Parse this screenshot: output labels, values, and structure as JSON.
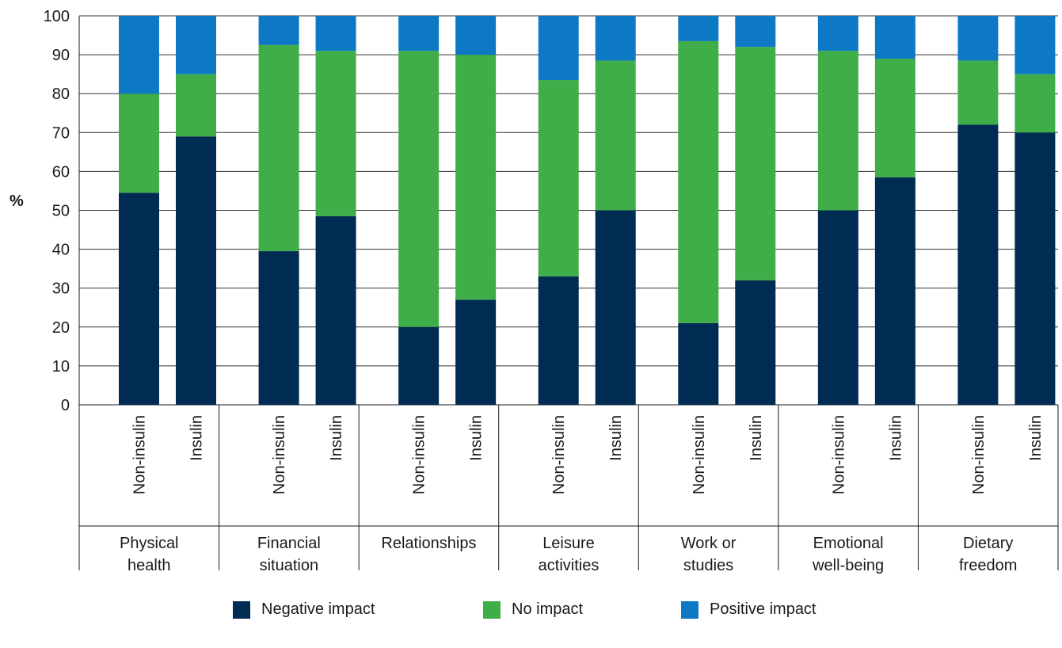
{
  "chart_data": {
    "type": "bar",
    "stacked": true,
    "ylabel": "%",
    "ylim": [
      0,
      100
    ],
    "yticks": [
      0,
      10,
      20,
      30,
      40,
      50,
      60,
      70,
      80,
      90,
      100
    ],
    "grid": true,
    "legend_position": "bottom",
    "groups": [
      {
        "label": "Physical health",
        "lines": [
          "Physical",
          "health"
        ],
        "bars": [
          {
            "label": "Non-insulin",
            "values": [
              54.5,
              25.5,
              20
            ]
          },
          {
            "label": "Insulin",
            "values": [
              69,
              16,
              15
            ]
          }
        ]
      },
      {
        "label": "Financial situation",
        "lines": [
          "Financial",
          "situation"
        ],
        "bars": [
          {
            "label": "Non-insulin",
            "values": [
              39.5,
              53,
              7.5
            ]
          },
          {
            "label": "Insulin",
            "values": [
              48.5,
              42.5,
              9
            ]
          }
        ]
      },
      {
        "label": "Relationships",
        "lines": [
          "Relationships"
        ],
        "bars": [
          {
            "label": "Non-insulin",
            "values": [
              20,
              71,
              9
            ]
          },
          {
            "label": "Insulin",
            "values": [
              27,
              63,
              10
            ]
          }
        ]
      },
      {
        "label": "Leisure activities",
        "lines": [
          "Leisure",
          "activities"
        ],
        "bars": [
          {
            "label": "Non-insulin",
            "values": [
              33,
              50.5,
              16.5
            ]
          },
          {
            "label": "Insulin",
            "values": [
              50,
              38.5,
              11.5
            ]
          }
        ]
      },
      {
        "label": "Work or studies",
        "lines": [
          "Work or",
          "studies"
        ],
        "bars": [
          {
            "label": "Non-insulin",
            "values": [
              21,
              72.5,
              6.5
            ]
          },
          {
            "label": "Insulin",
            "values": [
              32,
              60,
              8
            ]
          }
        ]
      },
      {
        "label": "Emotional well-being",
        "lines": [
          "Emotional",
          "well-being"
        ],
        "bars": [
          {
            "label": "Non-insulin",
            "values": [
              50,
              41,
              9
            ]
          },
          {
            "label": "Insulin",
            "values": [
              58.5,
              30.5,
              11
            ]
          }
        ]
      },
      {
        "label": "Dietary freedom",
        "lines": [
          "Dietary",
          "freedom"
        ],
        "bars": [
          {
            "label": "Non-insulin",
            "values": [
              72,
              16.5,
              11.5
            ]
          },
          {
            "label": "Insulin",
            "values": [
              70,
              15,
              15
            ]
          }
        ]
      }
    ],
    "series": [
      {
        "name": "Negative impact",
        "color": "#002b52"
      },
      {
        "name": "No impact",
        "color": "#3fae49"
      },
      {
        "name": "Positive impact",
        "color": "#0d78c4"
      }
    ]
  }
}
